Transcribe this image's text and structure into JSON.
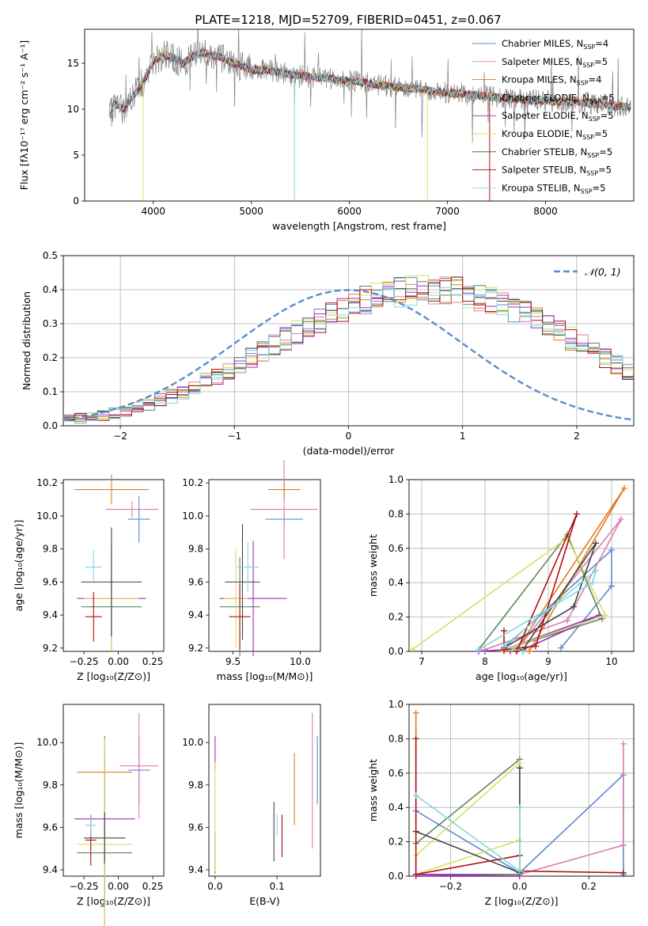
{
  "figure_title": "PLATE=1218, MJD=52709, FIBERID=0451, z=0.067",
  "colors": {
    "chabrier_miles": "#5b8bd0",
    "salpeter_miles": "#e07ab0",
    "kroupa_miles": "#e07b1a",
    "chabrier_elodie": "#5a8a5a",
    "salpeter_elodie": "#9b30c0",
    "kroupa_elodie": "#d8e060",
    "chabrier_stelib": "#444444",
    "salpeter_stelib": "#b01010",
    "kroupa_stelib": "#80d8e0",
    "data": "#808080",
    "gaussian": "#5b8bd0"
  },
  "chart_data": [
    {
      "type": "line",
      "id": "spectrum",
      "xlabel": "wavelength [Angstrom, rest frame]",
      "ylabel": "Flux [fλ10⁻¹⁷ erg cm⁻² s⁻¹ A⁻¹]",
      "xlim": [
        3300,
        8900
      ],
      "ylim": [
        0,
        18.7
      ],
      "xticks": [
        "4000",
        "5000",
        "6000",
        "7000",
        "8000"
      ],
      "yticks": [
        "0",
        "5",
        "10",
        "15"
      ],
      "grid": false,
      "legend_position": "top-right",
      "legend": [
        {
          "label": "Chabrier MILES, N",
          "sub": "SSP",
          "tail": "=4"
        },
        {
          "label": "Salpeter MILES, N",
          "sub": "SSP",
          "tail": "=5"
        },
        {
          "label": "Kroupa MILES, N",
          "sub": "SSP",
          "tail": "=4"
        },
        {
          "label": "Chabrier ELODIE, N",
          "sub": "SSP",
          "tail": "=5"
        },
        {
          "label": "Salpeter ELODIE, N",
          "sub": "SSP",
          "tail": "=5"
        },
        {
          "label": "Kroupa ELODIE, N",
          "sub": "SSP",
          "tail": "=5"
        },
        {
          "label": "Chabrier STELIB, N",
          "sub": "SSP",
          "tail": "=5"
        },
        {
          "label": "Salpeter STELIB, N",
          "sub": "SSP",
          "tail": "=5"
        },
        {
          "label": "Kroupa STELIB, N",
          "sub": "SSP",
          "tail": "=5"
        }
      ],
      "continuum": {
        "x": [
          3550,
          3600,
          3700,
          3800,
          3900,
          4000,
          4100,
          4200,
          4300,
          4400,
          4500,
          4600,
          4700,
          4800,
          4900,
          5000,
          5200,
          5400,
          5600,
          5800,
          6000,
          6200,
          6400,
          6600,
          6800,
          7000,
          7200,
          7400,
          7600,
          7800,
          8000,
          8200,
          8400,
          8600,
          8800,
          8900
        ],
        "y": [
          8.8,
          10.6,
          10.0,
          11.5,
          13.0,
          15.2,
          15.9,
          15.6,
          15.0,
          15.7,
          16.2,
          15.9,
          15.6,
          15.0,
          14.7,
          14.3,
          14.2,
          13.8,
          13.5,
          13.3,
          13.1,
          12.8,
          12.5,
          12.3,
          12.0,
          11.8,
          11.6,
          11.4,
          11.2,
          11.0,
          10.9,
          10.8,
          10.7,
          10.5,
          10.3,
          10.2
        ]
      },
      "model_dips": [
        {
          "x": 3895,
          "y": 0.0,
          "series": "kroupa_elodie"
        },
        {
          "x": 5440,
          "y": 0.0,
          "series": "kroupa_stelib"
        },
        {
          "x": 6795,
          "y": 0.0,
          "series": "kroupa_elodie"
        },
        {
          "x": 7430,
          "y": 0.0,
          "series": "salpeter_stelib"
        }
      ]
    },
    {
      "type": "histogram",
      "id": "residuals",
      "xlabel": "(data-model)/error",
      "ylabel": "Normed distribution",
      "xlim": [
        -2.5,
        2.5
      ],
      "ylim": [
        0,
        0.5
      ],
      "xticks": [
        "−2",
        "−1",
        "0",
        "1",
        "2"
      ],
      "yticks": [
        "0.0",
        "0.1",
        "0.2",
        "0.3",
        "0.4",
        "0.5"
      ],
      "grid": true,
      "legend_position": "top-right",
      "legend": [
        {
          "label": "𝒩(0, 1)"
        }
      ],
      "bin_width": 0.1,
      "bin_start": -2.5,
      "base": [
        0.018,
        0.022,
        0.027,
        0.032,
        0.038,
        0.046,
        0.055,
        0.064,
        0.075,
        0.087,
        0.1,
        0.115,
        0.13,
        0.146,
        0.163,
        0.181,
        0.199,
        0.218,
        0.237,
        0.256,
        0.275,
        0.293,
        0.311,
        0.327,
        0.342,
        0.356,
        0.368,
        0.378,
        0.386,
        0.393,
        0.397,
        0.399,
        0.399,
        0.397,
        0.393,
        0.386,
        0.378,
        0.368,
        0.356,
        0.342,
        0.327,
        0.311,
        0.293,
        0.275,
        0.256,
        0.237,
        0.218,
        0.199,
        0.181,
        0.163,
        0.146
      ],
      "series_keys": [
        "chabrier_miles",
        "salpeter_miles",
        "kroupa_miles",
        "chabrier_elodie",
        "salpeter_elodie",
        "kroupa_elodie",
        "chabrier_stelib",
        "salpeter_stelib",
        "kroupa_stelib"
      ]
    },
    {
      "type": "errorbar",
      "id": "age_vs_z",
      "xlabel": "Z [log₁₀(Z/Z⊙)]",
      "ylabel": "age  [log₁₀(age/yr)]",
      "xlim": [
        -0.4,
        0.33
      ],
      "ylim": [
        9.18,
        10.22
      ],
      "xticks": [
        "−0.25",
        "0.00",
        "0.25"
      ],
      "yticks": [
        "9.2",
        "9.4",
        "9.6",
        "9.8",
        "10.0",
        "10.2"
      ],
      "points": [
        {
          "x": 0.15,
          "y": 9.98,
          "xerr": 0.08,
          "yerr": 0.14,
          "series": "chabrier_miles"
        },
        {
          "x": 0.1,
          "y": 10.04,
          "xerr": 0.19,
          "yerr": 0.05,
          "series": "salpeter_miles"
        },
        {
          "x": -0.05,
          "y": 10.16,
          "xerr": 0.27,
          "yerr": 0.09,
          "series": "kroupa_miles"
        },
        {
          "x": -0.05,
          "y": 9.45,
          "xerr": 0.22,
          "yerr": 0.21,
          "series": "chabrier_elodie"
        },
        {
          "x": -0.05,
          "y": 9.5,
          "xerr": 0.25,
          "yerr": 0.32,
          "series": "salpeter_elodie"
        },
        {
          "x": -0.05,
          "y": 9.5,
          "xerr": 0.2,
          "yerr": 0.32,
          "series": "kroupa_elodie"
        },
        {
          "x": -0.05,
          "y": 9.6,
          "xerr": 0.22,
          "yerr": 0.33,
          "series": "chabrier_stelib"
        },
        {
          "x": -0.18,
          "y": 9.39,
          "xerr": 0.06,
          "yerr": 0.15,
          "series": "salpeter_stelib"
        },
        {
          "x": -0.18,
          "y": 9.69,
          "xerr": 0.06,
          "yerr": 0.1,
          "series": "kroupa_stelib"
        }
      ]
    },
    {
      "type": "errorbar",
      "id": "age_vs_mass",
      "xlabel": "mass [log₁₀(M/M⊙)]",
      "ylabel": "",
      "xlim": [
        9.32,
        10.15
      ],
      "ylim": [
        9.18,
        10.22
      ],
      "xticks": [
        "9.5",
        "10.0"
      ],
      "yticks": [
        "9.2",
        "9.4",
        "9.6",
        "9.8",
        "10.0",
        "10.2"
      ],
      "points": [
        {
          "x": 9.88,
          "y": 9.98,
          "xerr": 0.14,
          "yerr": 0.04,
          "series": "chabrier_miles"
        },
        {
          "x": 9.88,
          "y": 10.04,
          "xerr": 0.25,
          "yerr": 0.3,
          "series": "salpeter_miles"
        },
        {
          "x": 9.88,
          "y": 10.16,
          "xerr": 0.12,
          "yerr": 0.05,
          "series": "kroupa_miles"
        },
        {
          "x": 9.55,
          "y": 9.45,
          "xerr": 0.15,
          "yerr": 0.3,
          "series": "chabrier_elodie"
        },
        {
          "x": 9.65,
          "y": 9.5,
          "xerr": 0.25,
          "yerr": 0.35,
          "series": "salpeter_elodie"
        },
        {
          "x": 9.52,
          "y": 9.5,
          "xerr": 0.09,
          "yerr": 0.3,
          "series": "kroupa_elodie"
        },
        {
          "x": 9.57,
          "y": 9.6,
          "xerr": 0.13,
          "yerr": 0.35,
          "series": "chabrier_stelib"
        },
        {
          "x": 9.55,
          "y": 9.39,
          "xerr": 0.08,
          "yerr": 0.2,
          "series": "salpeter_stelib"
        },
        {
          "x": 9.61,
          "y": 9.69,
          "xerr": 0.08,
          "yerr": 0.15,
          "series": "kroupa_stelib"
        }
      ]
    },
    {
      "type": "line",
      "id": "massweight_vs_age",
      "xlabel": "age  [log₁₀(age/yr)]",
      "ylabel": "mass weight",
      "xlim": [
        6.8,
        10.35
      ],
      "ylim": [
        0,
        1.0
      ],
      "xticks": [
        "7",
        "8",
        "9",
        "10"
      ],
      "yticks": [
        "0.0",
        "0.2",
        "0.4",
        "0.6",
        "0.8",
        "1.0"
      ],
      "grid": true,
      "series": [
        {
          "key": "chabrier_miles",
          "x": [
            8.3,
            10.0,
            10.0,
            9.2
          ],
          "y": [
            0.02,
            0.59,
            0.38,
            0.02
          ]
        },
        {
          "key": "salpeter_miles",
          "x": [
            8.0,
            9.3,
            10.15,
            8.5,
            8.3
          ],
          "y": [
            0.01,
            0.18,
            0.77,
            0.01,
            0.0
          ]
        },
        {
          "key": "kroupa_miles",
          "x": [
            8.5,
            10.2,
            8.7,
            8.3
          ],
          "y": [
            0.01,
            0.95,
            0.0,
            0.0
          ]
        },
        {
          "key": "chabrier_elodie",
          "x": [
            7.9,
            9.3,
            9.85,
            8.3,
            8.6
          ],
          "y": [
            0.01,
            0.68,
            0.19,
            0.01,
            0.0
          ]
        },
        {
          "key": "salpeter_elodie",
          "x": [
            7.9,
            8.3,
            9.8,
            8.6,
            8.4
          ],
          "y": [
            0.0,
            0.01,
            0.21,
            0.01,
            0.0
          ]
        },
        {
          "key": "kroupa_elodie",
          "x": [
            6.85,
            9.3,
            9.9,
            8.3,
            8.6
          ],
          "y": [
            0.01,
            0.66,
            0.21,
            0.01,
            0.0
          ]
        },
        {
          "key": "chabrier_stelib",
          "x": [
            8.3,
            9.4,
            9.75,
            8.6,
            8.5
          ],
          "y": [
            0.02,
            0.26,
            0.63,
            0.01,
            0.0
          ]
        },
        {
          "key": "salpeter_stelib",
          "x": [
            8.3,
            8.3,
            8.8,
            9.45,
            8.5
          ],
          "y": [
            0.12,
            0.01,
            0.03,
            0.8,
            0.0
          ]
        },
        {
          "key": "kroupa_stelib",
          "x": [
            7.9,
            9.7,
            9.75,
            8.3,
            8.6
          ],
          "y": [
            0.01,
            0.4,
            0.47,
            0.03,
            0.0
          ]
        }
      ]
    },
    {
      "type": "errorbar",
      "id": "mass_vs_z",
      "xlabel": "Z [log₁₀(Z/Z⊙)]",
      "ylabel": "mass [log₁₀(M/M⊙)]",
      "xlim": [
        -0.4,
        0.33
      ],
      "ylim": [
        9.37,
        10.18
      ],
      "xticks": [
        "−0.25",
        "0.00",
        "0.25"
      ],
      "yticks": [
        "9.4",
        "9.6",
        "9.8",
        "10.0"
      ],
      "points": [
        {
          "x": 0.15,
          "y": 9.87,
          "xerr": 0.08,
          "yerr": 0.16,
          "series": "chabrier_miles"
        },
        {
          "x": 0.15,
          "y": 9.89,
          "xerr": 0.14,
          "yerr": 0.25,
          "series": "salpeter_miles"
        },
        {
          "x": -0.1,
          "y": 9.86,
          "xerr": 0.2,
          "yerr": 0.09,
          "series": "kroupa_miles"
        },
        {
          "x": -0.1,
          "y": 9.48,
          "xerr": 0.2,
          "yerr": 0.44,
          "series": "chabrier_elodie"
        },
        {
          "x": -0.1,
          "y": 9.64,
          "xerr": 0.22,
          "yerr": 0.39,
          "series": "salpeter_elodie"
        },
        {
          "x": -0.1,
          "y": 9.52,
          "xerr": 0.2,
          "yerr": 0.5,
          "series": "kroupa_elodie"
        },
        {
          "x": -0.1,
          "y": 9.55,
          "xerr": 0.15,
          "yerr": 0.12,
          "series": "chabrier_stelib"
        },
        {
          "x": -0.2,
          "y": 9.54,
          "xerr": 0.04,
          "yerr": 0.12,
          "series": "salpeter_stelib"
        },
        {
          "x": -0.2,
          "y": 9.61,
          "xerr": 0.04,
          "yerr": 0.05,
          "series": "kroupa_stelib"
        }
      ]
    },
    {
      "type": "errorbar",
      "id": "mass_vs_ebv",
      "xlabel": "E(B-V)",
      "ylabel": "",
      "xlim": [
        -0.01,
        0.17
      ],
      "ylim": [
        9.37,
        10.18
      ],
      "xticks": [
        "0.0",
        "0.1"
      ],
      "yticks": [
        "9.4",
        "9.6",
        "9.8",
        "10.0"
      ],
      "points": [
        {
          "x": 0.165,
          "y": 9.87,
          "xerr": 0.0,
          "yerr": 0.16,
          "series": "chabrier_miles"
        },
        {
          "x": 0.157,
          "y": 9.82,
          "xerr": 0.0,
          "yerr": 0.32,
          "series": "salpeter_miles"
        },
        {
          "x": 0.128,
          "y": 9.78,
          "xerr": 0.0,
          "yerr": 0.17,
          "series": "kroupa_miles"
        },
        {
          "x": 0.0,
          "y": 9.48,
          "xerr": 0.0,
          "yerr": 0.1,
          "series": "chabrier_elodie"
        },
        {
          "x": 0.0,
          "y": 9.95,
          "xerr": 0.0,
          "yerr": 0.08,
          "series": "salpeter_elodie"
        },
        {
          "x": 0.0,
          "y": 9.65,
          "xerr": 0.0,
          "yerr": 0.26,
          "series": "kroupa_elodie"
        },
        {
          "x": 0.095,
          "y": 9.58,
          "xerr": 0.0,
          "yerr": 0.14,
          "series": "chabrier_stelib"
        },
        {
          "x": 0.108,
          "y": 9.56,
          "xerr": 0.0,
          "yerr": 0.1,
          "series": "salpeter_stelib"
        },
        {
          "x": 0.1,
          "y": 9.61,
          "xerr": 0.0,
          "yerr": 0.05,
          "series": "kroupa_stelib"
        }
      ]
    },
    {
      "type": "line",
      "id": "massweight_vs_z",
      "xlabel": "Z [log₁₀(Z/Z⊙)]",
      "ylabel": "mass weight",
      "xlim": [
        -0.32,
        0.33
      ],
      "ylim": [
        0,
        1.0
      ],
      "xticks": [
        "−0.2",
        "0.0",
        "0.2"
      ],
      "yticks": [
        "0.0",
        "0.2",
        "0.4",
        "0.6",
        "0.8",
        "1.0"
      ],
      "grid": true,
      "series": [
        {
          "key": "chabrier_miles",
          "x": [
            -0.3,
            0.0,
            0.3,
            0.3
          ],
          "y": [
            0.38,
            0.02,
            0.59,
            0.01
          ]
        },
        {
          "key": "salpeter_miles",
          "x": [
            -0.3,
            0.0,
            0.3,
            0.3
          ],
          "y": [
            0.01,
            0.01,
            0.18,
            0.77
          ]
        },
        {
          "key": "kroupa_miles",
          "x": [
            -0.3,
            -0.3,
            0.0,
            -0.3
          ],
          "y": [
            0.95,
            0.01,
            0.0,
            0.0
          ]
        },
        {
          "key": "chabrier_elodie",
          "x": [
            -0.3,
            0.0,
            0.0,
            -0.3
          ],
          "y": [
            0.19,
            0.68,
            0.01,
            0.01
          ]
        },
        {
          "key": "salpeter_elodie",
          "x": [
            -0.3,
            0.0,
            -0.3
          ],
          "y": [
            0.0,
            0.0,
            0.01
          ]
        },
        {
          "key": "kroupa_elodie",
          "x": [
            -0.3,
            0.0,
            0.0,
            -0.3
          ],
          "y": [
            0.12,
            0.66,
            0.21,
            0.01
          ]
        },
        {
          "key": "chabrier_stelib",
          "x": [
            -0.3,
            0.0,
            0.0
          ],
          "y": [
            0.26,
            0.02,
            0.63
          ]
        },
        {
          "key": "salpeter_stelib",
          "x": [
            -0.3,
            -0.3,
            0.0,
            0.0,
            0.3
          ],
          "y": [
            0.8,
            0.01,
            0.12,
            0.03,
            0.02
          ]
        },
        {
          "key": "kroupa_stelib",
          "x": [
            -0.3,
            0.0,
            0.0
          ],
          "y": [
            0.47,
            0.03,
            0.4
          ]
        }
      ]
    }
  ]
}
